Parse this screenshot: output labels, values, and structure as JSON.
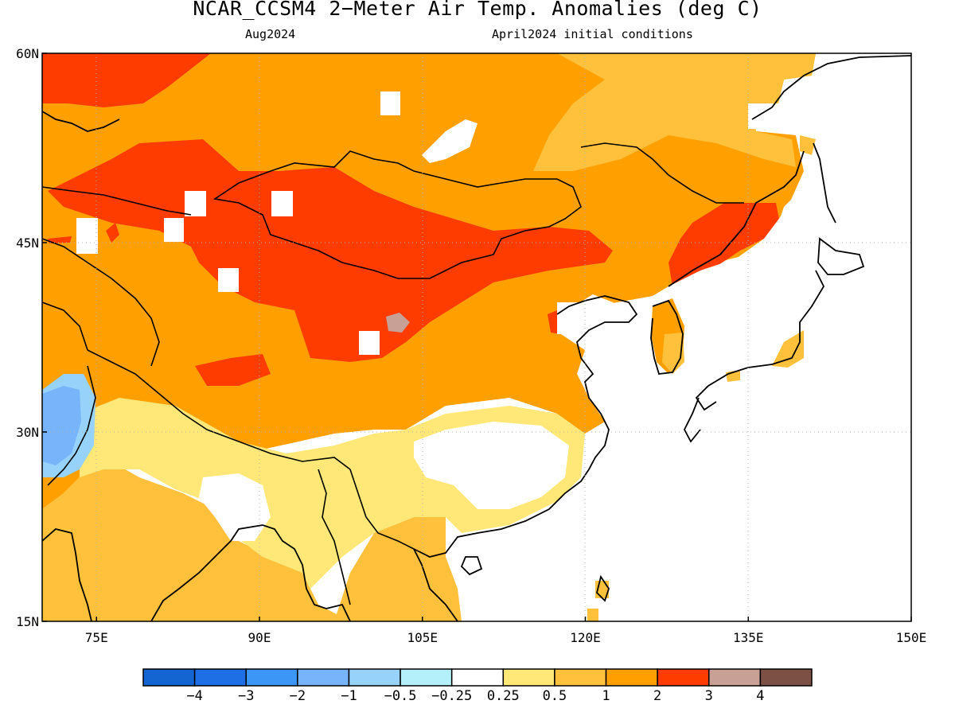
{
  "title": "NCAR_CCSM4 2−Meter Air Temp. Anomalies (deg C)",
  "subtitle_left": "Aug2024",
  "subtitle_right": "April2024 initial conditions",
  "axes": {
    "lon_ticks": [
      {
        "value": 75,
        "label": "75E"
      },
      {
        "value": 90,
        "label": "90E"
      },
      {
        "value": 105,
        "label": "105E"
      },
      {
        "value": 120,
        "label": "120E"
      },
      {
        "value": 135,
        "label": "135E"
      },
      {
        "value": 150,
        "label": "150E"
      }
    ],
    "lat_ticks": [
      {
        "value": 60,
        "label": "60N"
      },
      {
        "value": 45,
        "label": "45N"
      },
      {
        "value": 30,
        "label": "30N"
      },
      {
        "value": 15,
        "label": "15N"
      }
    ],
    "lon_range": [
      70,
      150
    ],
    "lat_range": [
      15,
      60
    ],
    "grid": "dotted"
  },
  "colorbar": {
    "labels": [
      "−4",
      "−3",
      "−2",
      "−1",
      "−0.5",
      "−0.25",
      "0.25",
      "0.5",
      "1",
      "2",
      "3",
      "4"
    ],
    "colors": [
      "#1464d2",
      "#1e6ee6",
      "#3c96f5",
      "#78b4fa",
      "#96d2fa",
      "#b4f0fa",
      "#ffffff",
      "#ffe878",
      "#ffc03c",
      "#ffa000",
      "#ff3c00",
      "#c8a096",
      "#7d5046"
    ]
  },
  "colors": {
    "light_orange": "#ffc03c",
    "orange": "#ffa000",
    "red": "#ff3c00",
    "pale_yellow": "#ffe878",
    "light_blue": "#96d2fa",
    "sky_blue": "#78b4fa",
    "mauve": "#c8a096"
  }
}
